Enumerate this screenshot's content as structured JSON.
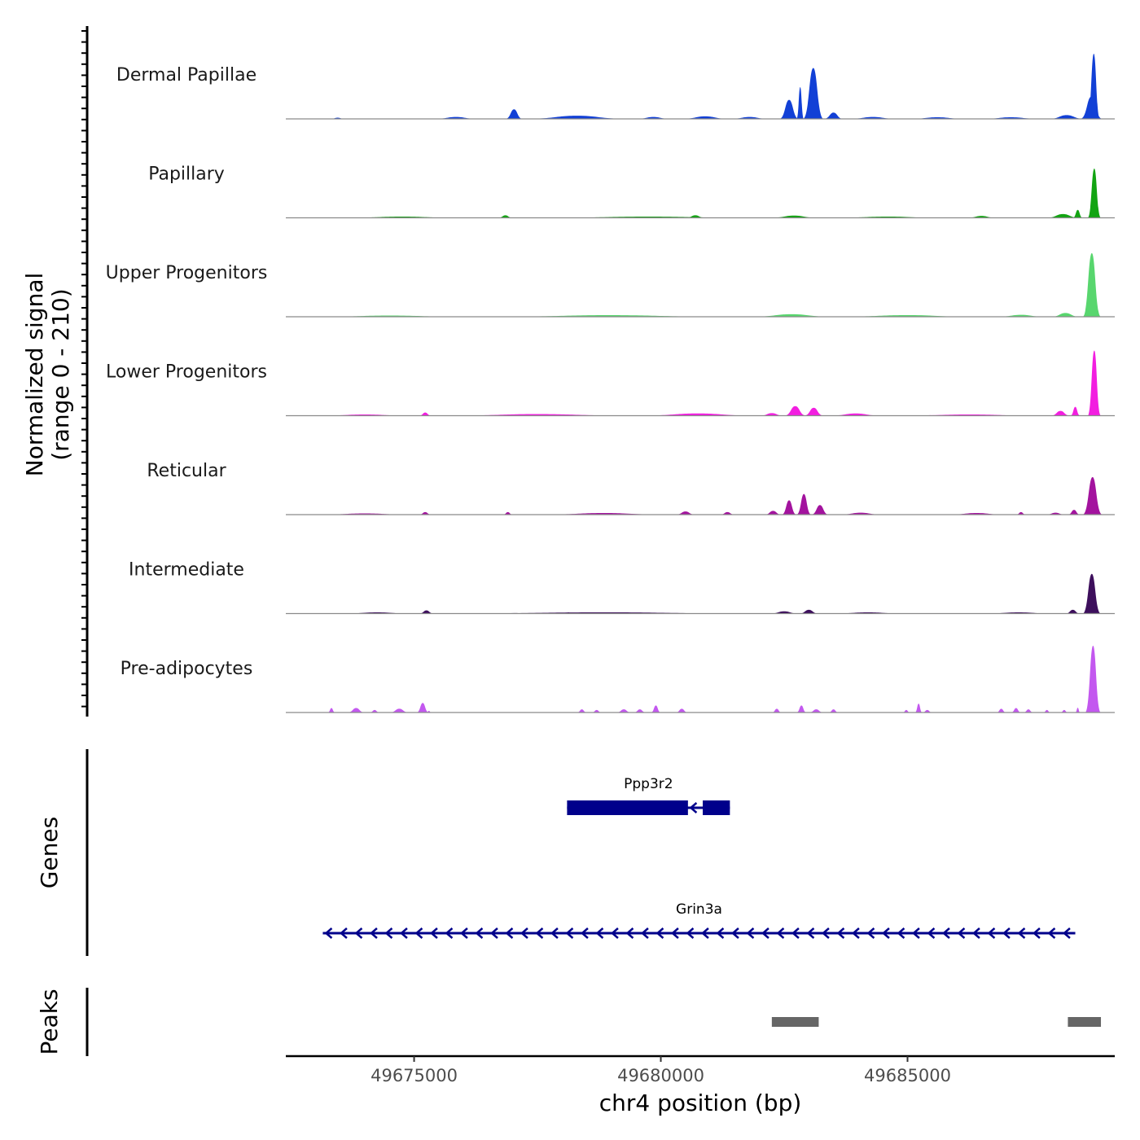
{
  "chart_data": {
    "type": "area",
    "chromosome": "chr4",
    "xlabel": "chr4 position (bp)",
    "xlim": [
      49672400,
      49689200
    ],
    "x_ticks": [
      49675000,
      49680000,
      49685000
    ],
    "x_tick_labels": [
      "49675000",
      "49680000",
      "49685000"
    ],
    "ylabel_line1": "Normalized signal",
    "ylabel_line2": "(range 0 - 210)",
    "ylim": [
      0,
      210
    ],
    "tracks": [
      {
        "name": "Dermal Papillae",
        "color": "#1240d6",
        "peaks": [
          {
            "start": 49673300,
            "end": 49673600,
            "height": 4
          },
          {
            "start": 49675400,
            "end": 49676300,
            "height": 6
          },
          {
            "start": 49676850,
            "end": 49677200,
            "height": 30
          },
          {
            "start": 49677200,
            "end": 49679400,
            "height": 10
          },
          {
            "start": 49679500,
            "end": 49680200,
            "height": 6
          },
          {
            "start": 49680400,
            "end": 49681400,
            "height": 8
          },
          {
            "start": 49681400,
            "end": 49682200,
            "height": 6
          },
          {
            "start": 49682400,
            "end": 49682800,
            "height": 60
          },
          {
            "start": 49682750,
            "end": 49682900,
            "height": 100
          },
          {
            "start": 49682880,
            "end": 49683300,
            "height": 160
          },
          {
            "start": 49683300,
            "end": 49683700,
            "height": 20
          },
          {
            "start": 49683800,
            "end": 49684800,
            "height": 6
          },
          {
            "start": 49685000,
            "end": 49686200,
            "height": 5
          },
          {
            "start": 49686500,
            "end": 49687700,
            "height": 5
          },
          {
            "start": 49687850,
            "end": 49688600,
            "height": 12
          },
          {
            "start": 49688500,
            "end": 49688950,
            "height": 70
          },
          {
            "start": 49688650,
            "end": 49688900,
            "height": 205
          }
        ]
      },
      {
        "name": "Papillary",
        "color": "#12a412",
        "peaks": [
          {
            "start": 49673500,
            "end": 49676000,
            "height": 4
          },
          {
            "start": 49676700,
            "end": 49677000,
            "height": 8
          },
          {
            "start": 49677500,
            "end": 49682000,
            "height": 4
          },
          {
            "start": 49680500,
            "end": 49680900,
            "height": 8
          },
          {
            "start": 49682200,
            "end": 49683200,
            "height": 7
          },
          {
            "start": 49683400,
            "end": 49685800,
            "height": 4
          },
          {
            "start": 49686200,
            "end": 49686800,
            "height": 6
          },
          {
            "start": 49687800,
            "end": 49688500,
            "height": 12
          },
          {
            "start": 49688350,
            "end": 49688550,
            "height": 25
          },
          {
            "start": 49688650,
            "end": 49688920,
            "height": 155
          }
        ]
      },
      {
        "name": "Upper Progenitors",
        "color": "#58d66e",
        "peaks": [
          {
            "start": 49673000,
            "end": 49676000,
            "height": 4
          },
          {
            "start": 49676500,
            "end": 49681500,
            "height": 5
          },
          {
            "start": 49681800,
            "end": 49683500,
            "height": 8
          },
          {
            "start": 49683500,
            "end": 49686500,
            "height": 5
          },
          {
            "start": 49686800,
            "end": 49687800,
            "height": 6
          },
          {
            "start": 49687900,
            "end": 49688500,
            "height": 12
          },
          {
            "start": 49688550,
            "end": 49688920,
            "height": 200
          }
        ]
      },
      {
        "name": "Lower Progenitors",
        "color": "#f21ee0",
        "peaks": [
          {
            "start": 49673000,
            "end": 49675000,
            "height": 4
          },
          {
            "start": 49675100,
            "end": 49675350,
            "height": 10
          },
          {
            "start": 49675500,
            "end": 49679500,
            "height": 5
          },
          {
            "start": 49679500,
            "end": 49682000,
            "height": 7
          },
          {
            "start": 49682000,
            "end": 49682500,
            "height": 8
          },
          {
            "start": 49682500,
            "end": 49682950,
            "height": 30
          },
          {
            "start": 49682900,
            "end": 49683300,
            "height": 25
          },
          {
            "start": 49683400,
            "end": 49684500,
            "height": 7
          },
          {
            "start": 49684700,
            "end": 49687800,
            "height": 4
          },
          {
            "start": 49687900,
            "end": 49688300,
            "height": 15
          },
          {
            "start": 49688300,
            "end": 49688500,
            "height": 28
          },
          {
            "start": 49688650,
            "end": 49688920,
            "height": 205
          }
        ]
      },
      {
        "name": "Reticular",
        "color": "#a3139e",
        "peaks": [
          {
            "start": 49673000,
            "end": 49675000,
            "height": 4
          },
          {
            "start": 49675100,
            "end": 49675350,
            "height": 8
          },
          {
            "start": 49676800,
            "end": 49677000,
            "height": 8
          },
          {
            "start": 49677500,
            "end": 49680200,
            "height": 5
          },
          {
            "start": 49680300,
            "end": 49680700,
            "height": 10
          },
          {
            "start": 49681200,
            "end": 49681500,
            "height": 8
          },
          {
            "start": 49682100,
            "end": 49682450,
            "height": 12
          },
          {
            "start": 49682450,
            "end": 49682750,
            "height": 45
          },
          {
            "start": 49682750,
            "end": 49683050,
            "height": 65
          },
          {
            "start": 49683050,
            "end": 49683400,
            "height": 30
          },
          {
            "start": 49683600,
            "end": 49684500,
            "height": 6
          },
          {
            "start": 49685800,
            "end": 49687000,
            "height": 5
          },
          {
            "start": 49687200,
            "end": 49687400,
            "height": 8
          },
          {
            "start": 49687800,
            "end": 49688200,
            "height": 6
          },
          {
            "start": 49688250,
            "end": 49688500,
            "height": 15
          },
          {
            "start": 49688550,
            "end": 49688950,
            "height": 118
          }
        ]
      },
      {
        "name": "Intermediate",
        "color": "#3d0f5c",
        "peaks": [
          {
            "start": 49673500,
            "end": 49675000,
            "height": 4
          },
          {
            "start": 49675100,
            "end": 49675400,
            "height": 10
          },
          {
            "start": 49675400,
            "end": 49682200,
            "height": 4
          },
          {
            "start": 49682200,
            "end": 49682800,
            "height": 7
          },
          {
            "start": 49682800,
            "end": 49683200,
            "height": 12
          },
          {
            "start": 49683400,
            "end": 49685000,
            "height": 4
          },
          {
            "start": 49686500,
            "end": 49688000,
            "height": 4
          },
          {
            "start": 49688200,
            "end": 49688500,
            "height": 12
          },
          {
            "start": 49688550,
            "end": 49688920,
            "height": 125
          }
        ]
      },
      {
        "name": "Pre-adipocytes",
        "color": "#c358ef",
        "peaks": [
          {
            "start": 49673250,
            "end": 49673400,
            "height": 14
          },
          {
            "start": 49673650,
            "end": 49674000,
            "height": 14
          },
          {
            "start": 49674100,
            "end": 49674300,
            "height": 8
          },
          {
            "start": 49674500,
            "end": 49674900,
            "height": 12
          },
          {
            "start": 49675050,
            "end": 49675300,
            "height": 30
          },
          {
            "start": 49675250,
            "end": 49675350,
            "height": 5
          },
          {
            "start": 49678300,
            "end": 49678500,
            "height": 10
          },
          {
            "start": 49678600,
            "end": 49678800,
            "height": 8
          },
          {
            "start": 49679100,
            "end": 49679400,
            "height": 10
          },
          {
            "start": 49679450,
            "end": 49679700,
            "height": 10
          },
          {
            "start": 49679800,
            "end": 49680000,
            "height": 22
          },
          {
            "start": 49680300,
            "end": 49680550,
            "height": 12
          },
          {
            "start": 49682250,
            "end": 49682450,
            "height": 12
          },
          {
            "start": 49682750,
            "end": 49682950,
            "height": 22
          },
          {
            "start": 49683000,
            "end": 49683300,
            "height": 10
          },
          {
            "start": 49683400,
            "end": 49683600,
            "height": 10
          },
          {
            "start": 49684900,
            "end": 49685050,
            "height": 8
          },
          {
            "start": 49685150,
            "end": 49685300,
            "height": 28
          },
          {
            "start": 49685300,
            "end": 49685500,
            "height": 8
          },
          {
            "start": 49686800,
            "end": 49687000,
            "height": 12
          },
          {
            "start": 49687100,
            "end": 49687300,
            "height": 14
          },
          {
            "start": 49687350,
            "end": 49687550,
            "height": 10
          },
          {
            "start": 49687750,
            "end": 49687900,
            "height": 8
          },
          {
            "start": 49688100,
            "end": 49688250,
            "height": 8
          },
          {
            "start": 49688400,
            "end": 49688500,
            "height": 15
          },
          {
            "start": 49688600,
            "end": 49688920,
            "height": 210
          }
        ]
      }
    ],
    "genes_label": "Genes",
    "genes": [
      {
        "name": "Ppp3r2",
        "strand": "-",
        "start": 49678100,
        "end": 49681400,
        "exons": [
          [
            49678100,
            49680550
          ],
          [
            49680850,
            49681400
          ]
        ],
        "color": "#00008b"
      },
      {
        "name": "Grin3a",
        "strand": "-",
        "start": 49673150,
        "end": 49688400,
        "exons": [],
        "color": "#00008b"
      }
    ],
    "peaks_label": "Peaks",
    "peak_regions": [
      {
        "start": 49682250,
        "end": 49683200
      },
      {
        "start": 49688250,
        "end": 49688920
      }
    ],
    "peak_color": "#666666"
  }
}
